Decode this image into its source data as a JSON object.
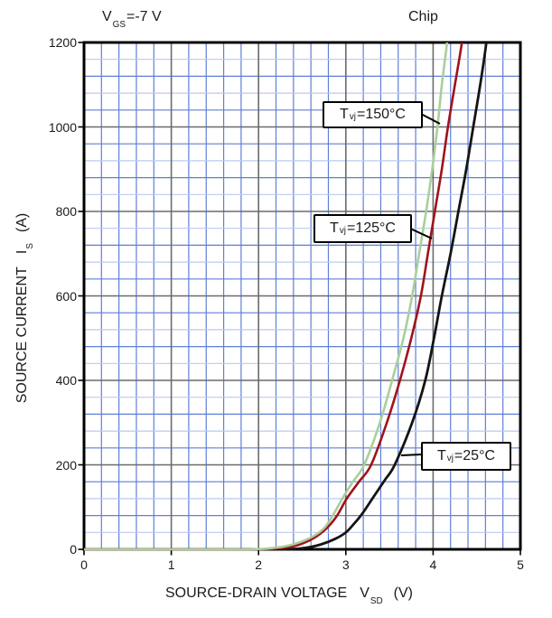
{
  "header": {
    "vgs": {
      "base": "V",
      "sub": "GS",
      "rest": "=-7 V"
    },
    "chip": "Chip"
  },
  "chart_data": {
    "type": "line",
    "xlabel": {
      "text": "SOURCE-DRAIN VOLTAGE",
      "sym": "V",
      "sub": "SD",
      "unit": "(V)"
    },
    "ylabel": {
      "text": "SOURCE CURRENT",
      "sym": "I",
      "sub": "S",
      "unit": "(A)"
    },
    "xlim": [
      0,
      5
    ],
    "ylim": [
      0,
      1200
    ],
    "x_major_step": 1,
    "x_minor_step": 0.2,
    "y_major_step": 200,
    "y_minor_step": 40,
    "x_ticks": [
      "0",
      "1",
      "2",
      "3",
      "4",
      "5"
    ],
    "y_ticks": [
      "0",
      "200",
      "400",
      "600",
      "800",
      "1000",
      "1200"
    ],
    "grid": {
      "on": true,
      "minor_color": "#5f7fd6",
      "minor_color_light": "#bcc9f0",
      "major_color": "#6b6b6b",
      "border_color": "#000000"
    },
    "series": [
      {
        "name": "Tvj=150°C",
        "color": "#a9cf9c",
        "width": 2.6,
        "points": [
          [
            0,
            0
          ],
          [
            1.0,
            0
          ],
          [
            1.9,
            0
          ],
          [
            2.2,
            4
          ],
          [
            2.4,
            12
          ],
          [
            2.6,
            28
          ],
          [
            2.75,
            50
          ],
          [
            2.85,
            80
          ],
          [
            2.96,
            120
          ],
          [
            3.08,
            160
          ],
          [
            3.21,
            200
          ],
          [
            3.39,
            300
          ],
          [
            3.53,
            400
          ],
          [
            3.66,
            500
          ],
          [
            3.76,
            600
          ],
          [
            3.84,
            700
          ],
          [
            3.92,
            800
          ],
          [
            3.99,
            900
          ],
          [
            4.05,
            1000
          ],
          [
            4.1,
            1100
          ],
          [
            4.16,
            1200
          ],
          [
            4.2,
            1290
          ]
        ]
      },
      {
        "name": "Tvj=125°C",
        "color": "#a01318",
        "width": 2.6,
        "points": [
          [
            0,
            0
          ],
          [
            1.0,
            0
          ],
          [
            2.0,
            0
          ],
          [
            2.3,
            4
          ],
          [
            2.45,
            10
          ],
          [
            2.62,
            25
          ],
          [
            2.78,
            50
          ],
          [
            2.9,
            80
          ],
          [
            3.01,
            120
          ],
          [
            3.15,
            160
          ],
          [
            3.29,
            200
          ],
          [
            3.47,
            300
          ],
          [
            3.62,
            400
          ],
          [
            3.75,
            500
          ],
          [
            3.86,
            600
          ],
          [
            3.94,
            700
          ],
          [
            4.02,
            800
          ],
          [
            4.1,
            900
          ],
          [
            4.17,
            1000
          ],
          [
            4.25,
            1100
          ],
          [
            4.33,
            1200
          ],
          [
            4.38,
            1290
          ]
        ]
      },
      {
        "name": "Tvj=25°C",
        "color": "#141414",
        "width": 2.8,
        "points": [
          [
            0,
            0
          ],
          [
            1.2,
            0
          ],
          [
            2.25,
            0
          ],
          [
            2.55,
            4
          ],
          [
            2.72,
            12
          ],
          [
            2.88,
            25
          ],
          [
            3.0,
            40
          ],
          [
            3.1,
            62
          ],
          [
            3.19,
            85
          ],
          [
            3.32,
            125
          ],
          [
            3.45,
            165
          ],
          [
            3.56,
            200
          ],
          [
            3.76,
            300
          ],
          [
            3.91,
            400
          ],
          [
            4.01,
            500
          ],
          [
            4.1,
            600
          ],
          [
            4.2,
            700
          ],
          [
            4.29,
            800
          ],
          [
            4.38,
            900
          ],
          [
            4.46,
            1000
          ],
          [
            4.54,
            1100
          ],
          [
            4.61,
            1200
          ],
          [
            4.65,
            1290
          ]
        ]
      }
    ],
    "annotations": [
      {
        "base": "T",
        "sub": "vj",
        "rest": "=150°C"
      },
      {
        "base": "T",
        "sub": "vj",
        "rest": "=125°C"
      },
      {
        "base": "T",
        "sub": "vj",
        "rest": "=25°C"
      }
    ],
    "legend_position": "inline-callouts"
  }
}
